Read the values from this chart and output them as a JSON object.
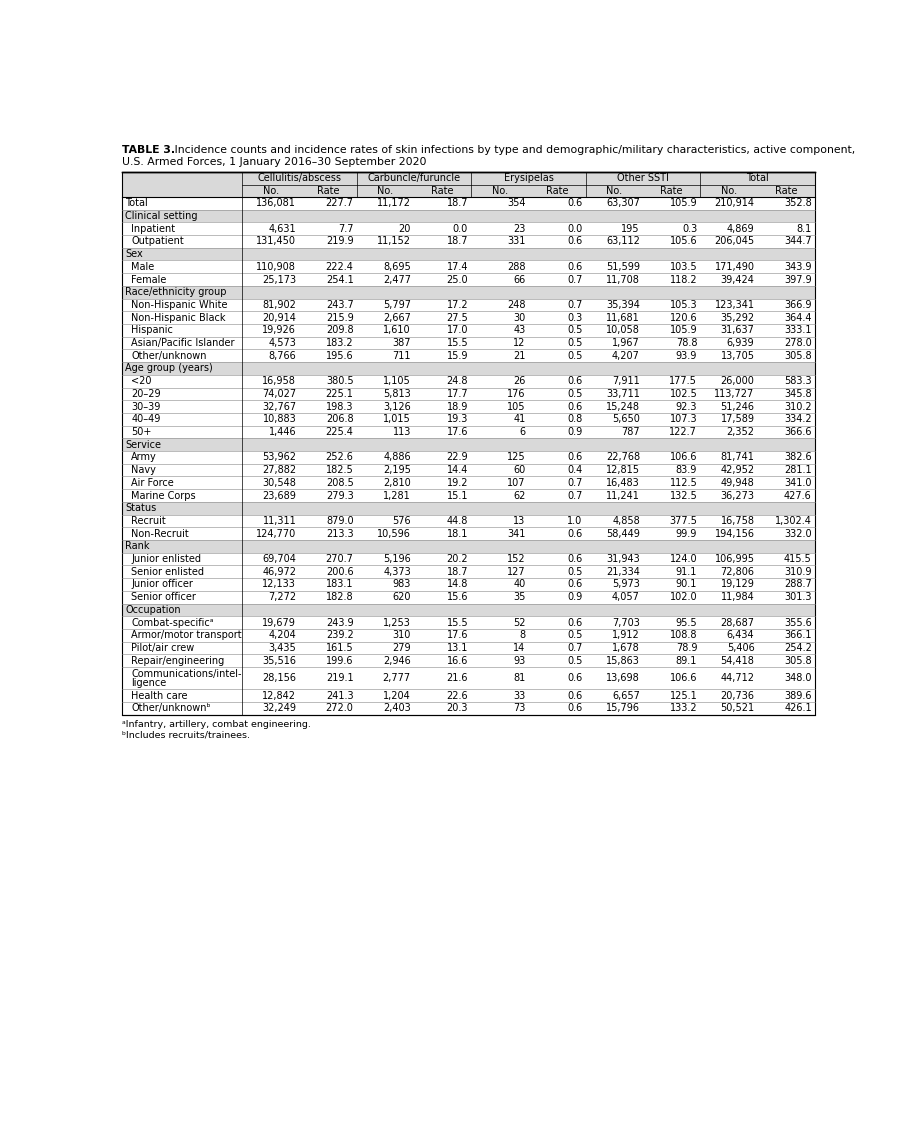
{
  "title_bold": "TABLE 3.",
  "title_line1_rest": " Incidence counts and incidence rates of skin infections by type and demographic/military characteristics, active component,",
  "title_line2": "U.S. Armed Forces, 1 January 2016–30 September 2020",
  "col_groups": [
    "Cellulitis/abscess",
    "Carbuncle/furuncle",
    "Erysipelas",
    "Other SSTI",
    "Total"
  ],
  "col_subheaders": [
    "No.",
    "Rate",
    "No.",
    "Rate",
    "No.",
    "Rate",
    "No.",
    "Rate",
    "No.",
    "Rate"
  ],
  "header_bg": "#d9d9d9",
  "section_bg": "#d9d9d9",
  "white": "#ffffff",
  "rows": [
    {
      "label": "Total",
      "indent": false,
      "section": false,
      "data": [
        "136,081",
        "227.7",
        "11,172",
        "18.7",
        "354",
        "0.6",
        "63,307",
        "105.9",
        "210,914",
        "352.8"
      ]
    },
    {
      "label": "Clinical setting",
      "indent": false,
      "section": true,
      "data": []
    },
    {
      "label": "Inpatient",
      "indent": true,
      "section": false,
      "data": [
        "4,631",
        "7.7",
        "20",
        "0.0",
        "23",
        "0.0",
        "195",
        "0.3",
        "4,869",
        "8.1"
      ]
    },
    {
      "label": "Outpatient",
      "indent": true,
      "section": false,
      "data": [
        "131,450",
        "219.9",
        "11,152",
        "18.7",
        "331",
        "0.6",
        "63,112",
        "105.6",
        "206,045",
        "344.7"
      ]
    },
    {
      "label": "Sex",
      "indent": false,
      "section": true,
      "data": []
    },
    {
      "label": "Male",
      "indent": true,
      "section": false,
      "data": [
        "110,908",
        "222.4",
        "8,695",
        "17.4",
        "288",
        "0.6",
        "51,599",
        "103.5",
        "171,490",
        "343.9"
      ]
    },
    {
      "label": "Female",
      "indent": true,
      "section": false,
      "data": [
        "25,173",
        "254.1",
        "2,477",
        "25.0",
        "66",
        "0.7",
        "11,708",
        "118.2",
        "39,424",
        "397.9"
      ]
    },
    {
      "label": "Race/ethnicity group",
      "indent": false,
      "section": true,
      "data": []
    },
    {
      "label": "Non-Hispanic White",
      "indent": true,
      "section": false,
      "data": [
        "81,902",
        "243.7",
        "5,797",
        "17.2",
        "248",
        "0.7",
        "35,394",
        "105.3",
        "123,341",
        "366.9"
      ]
    },
    {
      "label": "Non-Hispanic Black",
      "indent": true,
      "section": false,
      "data": [
        "20,914",
        "215.9",
        "2,667",
        "27.5",
        "30",
        "0.3",
        "11,681",
        "120.6",
        "35,292",
        "364.4"
      ]
    },
    {
      "label": "Hispanic",
      "indent": true,
      "section": false,
      "data": [
        "19,926",
        "209.8",
        "1,610",
        "17.0",
        "43",
        "0.5",
        "10,058",
        "105.9",
        "31,637",
        "333.1"
      ]
    },
    {
      "label": "Asian/Pacific Islander",
      "indent": true,
      "section": false,
      "data": [
        "4,573",
        "183.2",
        "387",
        "15.5",
        "12",
        "0.5",
        "1,967",
        "78.8",
        "6,939",
        "278.0"
      ]
    },
    {
      "label": "Other/unknown",
      "indent": true,
      "section": false,
      "data": [
        "8,766",
        "195.6",
        "711",
        "15.9",
        "21",
        "0.5",
        "4,207",
        "93.9",
        "13,705",
        "305.8"
      ]
    },
    {
      "label": "Age group (years)",
      "indent": false,
      "section": true,
      "data": []
    },
    {
      "label": "<20",
      "indent": true,
      "section": false,
      "data": [
        "16,958",
        "380.5",
        "1,105",
        "24.8",
        "26",
        "0.6",
        "7,911",
        "177.5",
        "26,000",
        "583.3"
      ]
    },
    {
      "label": "20–29",
      "indent": true,
      "section": false,
      "data": [
        "74,027",
        "225.1",
        "5,813",
        "17.7",
        "176",
        "0.5",
        "33,711",
        "102.5",
        "113,727",
        "345.8"
      ]
    },
    {
      "label": "30–39",
      "indent": true,
      "section": false,
      "data": [
        "32,767",
        "198.3",
        "3,126",
        "18.9",
        "105",
        "0.6",
        "15,248",
        "92.3",
        "51,246",
        "310.2"
      ]
    },
    {
      "label": "40–49",
      "indent": true,
      "section": false,
      "data": [
        "10,883",
        "206.8",
        "1,015",
        "19.3",
        "41",
        "0.8",
        "5,650",
        "107.3",
        "17,589",
        "334.2"
      ]
    },
    {
      "label": "50+",
      "indent": true,
      "section": false,
      "data": [
        "1,446",
        "225.4",
        "113",
        "17.6",
        "6",
        "0.9",
        "787",
        "122.7",
        "2,352",
        "366.6"
      ]
    },
    {
      "label": "Service",
      "indent": false,
      "section": true,
      "data": []
    },
    {
      "label": "Army",
      "indent": true,
      "section": false,
      "data": [
        "53,962",
        "252.6",
        "4,886",
        "22.9",
        "125",
        "0.6",
        "22,768",
        "106.6",
        "81,741",
        "382.6"
      ]
    },
    {
      "label": "Navy",
      "indent": true,
      "section": false,
      "data": [
        "27,882",
        "182.5",
        "2,195",
        "14.4",
        "60",
        "0.4",
        "12,815",
        "83.9",
        "42,952",
        "281.1"
      ]
    },
    {
      "label": "Air Force",
      "indent": true,
      "section": false,
      "data": [
        "30,548",
        "208.5",
        "2,810",
        "19.2",
        "107",
        "0.7",
        "16,483",
        "112.5",
        "49,948",
        "341.0"
      ]
    },
    {
      "label": "Marine Corps",
      "indent": true,
      "section": false,
      "data": [
        "23,689",
        "279.3",
        "1,281",
        "15.1",
        "62",
        "0.7",
        "11,241",
        "132.5",
        "36,273",
        "427.6"
      ]
    },
    {
      "label": "Status",
      "indent": false,
      "section": true,
      "data": []
    },
    {
      "label": "Recruit",
      "indent": true,
      "section": false,
      "data": [
        "11,311",
        "879.0",
        "576",
        "44.8",
        "13",
        "1.0",
        "4,858",
        "377.5",
        "16,758",
        "1,302.4"
      ]
    },
    {
      "label": "Non-Recruit",
      "indent": true,
      "section": false,
      "data": [
        "124,770",
        "213.3",
        "10,596",
        "18.1",
        "341",
        "0.6",
        "58,449",
        "99.9",
        "194,156",
        "332.0"
      ]
    },
    {
      "label": "Rank",
      "indent": false,
      "section": true,
      "data": []
    },
    {
      "label": "Junior enlisted",
      "indent": true,
      "section": false,
      "data": [
        "69,704",
        "270.7",
        "5,196",
        "20.2",
        "152",
        "0.6",
        "31,943",
        "124.0",
        "106,995",
        "415.5"
      ]
    },
    {
      "label": "Senior enlisted",
      "indent": true,
      "section": false,
      "data": [
        "46,972",
        "200.6",
        "4,373",
        "18.7",
        "127",
        "0.5",
        "21,334",
        "91.1",
        "72,806",
        "310.9"
      ]
    },
    {
      "label": "Junior officer",
      "indent": true,
      "section": false,
      "data": [
        "12,133",
        "183.1",
        "983",
        "14.8",
        "40",
        "0.6",
        "5,973",
        "90.1",
        "19,129",
        "288.7"
      ]
    },
    {
      "label": "Senior officer",
      "indent": true,
      "section": false,
      "data": [
        "7,272",
        "182.8",
        "620",
        "15.6",
        "35",
        "0.9",
        "4,057",
        "102.0",
        "11,984",
        "301.3"
      ]
    },
    {
      "label": "Occupation",
      "indent": false,
      "section": true,
      "data": []
    },
    {
      "label": "Combat-specificᵃ",
      "indent": true,
      "section": false,
      "data": [
        "19,679",
        "243.9",
        "1,253",
        "15.5",
        "52",
        "0.6",
        "7,703",
        "95.5",
        "28,687",
        "355.6"
      ]
    },
    {
      "label": "Armor/motor transport",
      "indent": true,
      "section": false,
      "data": [
        "4,204",
        "239.2",
        "310",
        "17.6",
        "8",
        "0.5",
        "1,912",
        "108.8",
        "6,434",
        "366.1"
      ]
    },
    {
      "label": "Pilot/air crew",
      "indent": true,
      "section": false,
      "data": [
        "3,435",
        "161.5",
        "279",
        "13.1",
        "14",
        "0.7",
        "1,678",
        "78.9",
        "5,406",
        "254.2"
      ]
    },
    {
      "label": "Repair/engineering",
      "indent": true,
      "section": false,
      "data": [
        "35,516",
        "199.6",
        "2,946",
        "16.6",
        "93",
        "0.5",
        "15,863",
        "89.1",
        "54,418",
        "305.8"
      ]
    },
    {
      "label": "Communications/intel-\nligence",
      "indent": true,
      "section": false,
      "multiline": true,
      "data": [
        "28,156",
        "219.1",
        "2,777",
        "21.6",
        "81",
        "0.6",
        "13,698",
        "106.6",
        "44,712",
        "348.0"
      ]
    },
    {
      "label": "Health care",
      "indent": true,
      "section": false,
      "data": [
        "12,842",
        "241.3",
        "1,204",
        "22.6",
        "33",
        "0.6",
        "6,657",
        "125.1",
        "20,736",
        "389.6"
      ]
    },
    {
      "label": "Other/unknownᵇ",
      "indent": true,
      "section": false,
      "data": [
        "32,249",
        "272.0",
        "2,403",
        "20.3",
        "73",
        "0.6",
        "15,796",
        "133.2",
        "50,521",
        "426.1"
      ]
    }
  ],
  "footnotes": [
    "ᵃInfantry, artillery, combat engineering.",
    "ᵇIncludes recruits/trainees."
  ],
  "fontsize_title": 7.8,
  "fontsize_header": 7.0,
  "fontsize_data": 7.0,
  "fontsize_footnote": 6.8
}
